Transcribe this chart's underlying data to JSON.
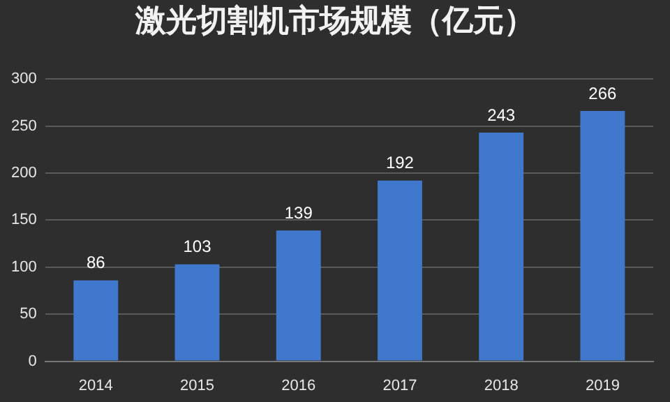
{
  "chart_data": {
    "type": "bar",
    "title": "激光切割机市场规模（亿元）",
    "categories": [
      "2014",
      "2015",
      "2016",
      "2017",
      "2018",
      "2019"
    ],
    "values": [
      86,
      103,
      139,
      192,
      243,
      266
    ],
    "color": "#3f78cc",
    "ylim": [
      0,
      300
    ],
    "yticks": [
      0,
      50,
      100,
      150,
      200,
      250,
      300
    ],
    "grid": "y",
    "data_labels": true
  }
}
